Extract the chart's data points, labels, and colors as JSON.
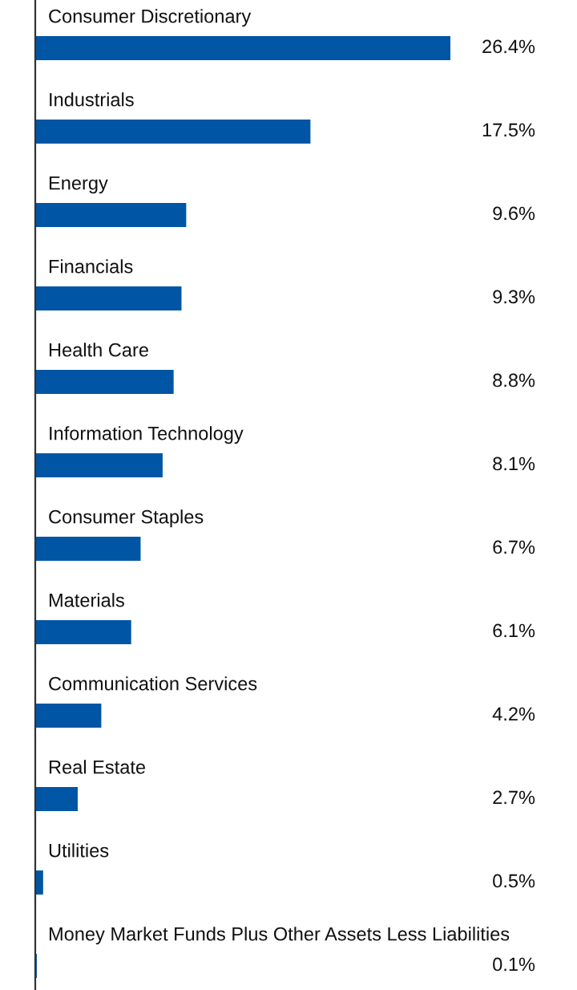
{
  "chart_data": {
    "type": "bar",
    "orientation": "horizontal",
    "categories": [
      "Consumer Discretionary",
      "Industrials",
      "Energy",
      "Financials",
      "Health Care",
      "Information Technology",
      "Consumer Staples",
      "Materials",
      "Communication Services",
      "Real Estate",
      "Utilities",
      "Money Market Funds Plus Other Assets Less Liabilities"
    ],
    "values": [
      26.4,
      17.5,
      9.6,
      9.3,
      8.8,
      8.1,
      6.7,
      6.1,
      4.2,
      2.7,
      0.5,
      0.1
    ],
    "value_labels": [
      "26.4%",
      "17.5%",
      "9.6%",
      "9.3%",
      "8.8%",
      "8.1%",
      "6.7%",
      "6.1%",
      "4.2%",
      "2.7%",
      "0.5%",
      "0.1%"
    ],
    "color": "#0055a5"
  }
}
